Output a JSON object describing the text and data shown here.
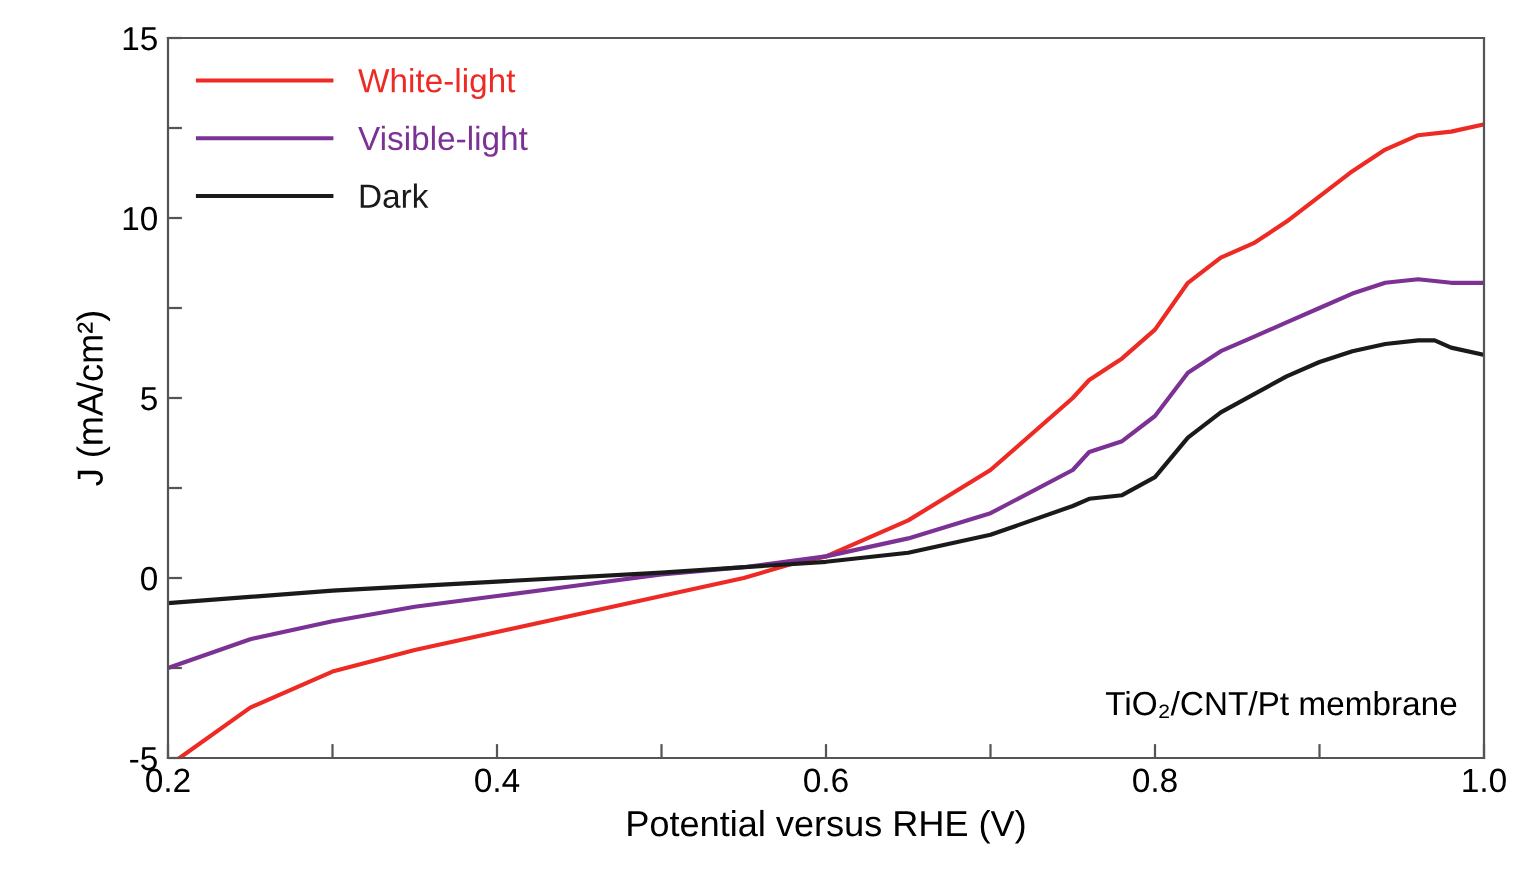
{
  "chart_data": {
    "type": "line",
    "xlabel": "Potential versus RHE (V)",
    "ylabel": "J (mA/cm²)",
    "xlim": [
      0.2,
      1.0
    ],
    "ylim": [
      -5,
      15
    ],
    "xticks": [
      0.2,
      {
        "value": 0.3,
        "label": null
      },
      0.4,
      {
        "value": 0.5,
        "label": null
      },
      0.6,
      {
        "value": 0.7,
        "label": null
      },
      0.8,
      {
        "value": 0.9,
        "label": null
      },
      {
        "value": 1.0,
        "label": "1.0"
      }
    ],
    "yticks": [
      -5,
      {
        "value": -2.5,
        "label": null
      },
      0,
      {
        "value": 2.5,
        "label": null
      },
      5,
      {
        "value": 7.5,
        "label": null
      },
      10,
      {
        "value": 12.5,
        "label": null
      },
      15
    ],
    "grid": false,
    "legend": "top left",
    "marker": "none",
    "line_style": "solid",
    "annotations": [
      "TiO₂/CNT/Pt membrane"
    ],
    "series": [
      {
        "name": "White-light",
        "color": "#ee2a24",
        "x": [
          0.207,
          0.25,
          0.3,
          0.35,
          0.4,
          0.45,
          0.5,
          0.55,
          0.58,
          0.6,
          0.65,
          0.7,
          0.75,
          0.76,
          0.78,
          0.8,
          0.82,
          0.84,
          0.86,
          0.88,
          0.9,
          0.92,
          0.94,
          0.96,
          0.98,
          1.0
        ],
        "values": [
          -5,
          -3.6,
          -2.6,
          -2.0,
          -1.5,
          -1.0,
          -0.5,
          0.0,
          0.4,
          0.6,
          1.6,
          3.0,
          5.0,
          5.5,
          6.1,
          6.9,
          8.2,
          8.9,
          9.3,
          9.9,
          10.6,
          11.3,
          11.9,
          12.3,
          12.4,
          12.6
        ]
      },
      {
        "name": "Visible-light",
        "color": "#7b3294",
        "x": [
          0.2,
          0.25,
          0.3,
          0.35,
          0.4,
          0.45,
          0.5,
          0.55,
          0.6,
          0.65,
          0.7,
          0.75,
          0.76,
          0.78,
          0.8,
          0.82,
          0.84,
          0.86,
          0.88,
          0.9,
          0.92,
          0.94,
          0.96,
          0.98,
          1.0
        ],
        "values": [
          -2.5,
          -1.7,
          -1.2,
          -0.8,
          -0.5,
          -0.2,
          0.1,
          0.3,
          0.6,
          1.1,
          1.8,
          3.0,
          3.5,
          3.8,
          4.5,
          5.7,
          6.3,
          6.7,
          7.1,
          7.5,
          7.9,
          8.2,
          8.3,
          8.2,
          8.2
        ]
      },
      {
        "name": "Dark",
        "color": "#1a1a1a",
        "x": [
          0.2,
          0.3,
          0.4,
          0.5,
          0.6,
          0.65,
          0.7,
          0.75,
          0.76,
          0.78,
          0.8,
          0.82,
          0.84,
          0.86,
          0.88,
          0.9,
          0.92,
          0.94,
          0.96,
          0.97,
          0.98,
          1.0
        ],
        "values": [
          -0.7,
          -0.35,
          -0.1,
          0.15,
          0.45,
          0.7,
          1.2,
          2.0,
          2.2,
          2.3,
          2.8,
          3.9,
          4.6,
          5.1,
          5.6,
          6.0,
          6.3,
          6.5,
          6.6,
          6.6,
          6.4,
          6.2
        ]
      }
    ]
  }
}
